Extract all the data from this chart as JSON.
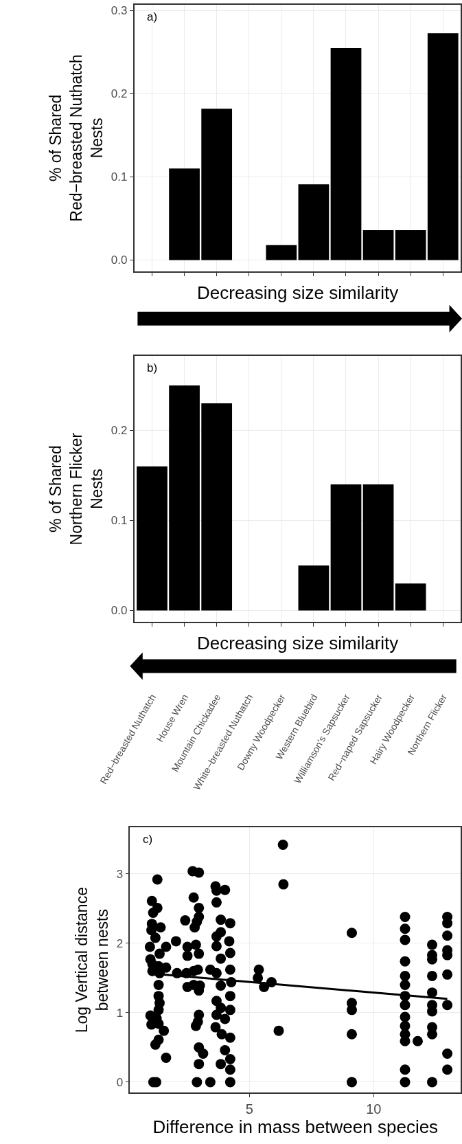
{
  "chart_data": [
    {
      "type": "bar",
      "categories": [
        null,
        null,
        null,
        null,
        null,
        null,
        null,
        null,
        null,
        null
      ],
      "values": [
        0,
        0.11,
        0.182,
        0,
        0.018,
        0.091,
        0.255,
        0.036,
        0.036,
        0.273
      ],
      "color": "#000000",
      "ylim": [
        -0.0135,
        0.307
      ],
      "yticks": [
        {
          "value": 0,
          "label": "0.0"
        },
        0.1,
        0.2,
        0.3
      ],
      "grid": true,
      "tick_labels": "y",
      "xlabel": "Decreasing size similarity",
      "ylabel": "% of Shared\nRed−breasted Nuthatch\nNests",
      "annotations": [
        "a)"
      ]
    },
    {
      "type": "bar",
      "categories": [
        "Red−breasted Nuthatch",
        "House Wren",
        "Mountain Chickadee",
        "White−breasted Nuthatch",
        "Downy Woodpecker",
        "Western Bluebird",
        "Williamson's Sapsucker",
        "Red−naped Sapsucker",
        "Hairy Woodpecker",
        "Northern Flicker"
      ],
      "values": [
        0.16,
        0.25,
        0.23,
        0,
        0,
        0.05,
        0.14,
        0.14,
        0.03,
        0
      ],
      "color": "#000000",
      "ylim": [
        -0.013,
        0.283
      ],
      "yticks": [
        {
          "value": 0,
          "label": "0.0"
        },
        {
          "value": 0.1,
          "label": "0.1"
        },
        {
          "value": 0.2,
          "label": "0.2"
        }
      ],
      "grid": true,
      "xlabel": "Decreasing size similarity",
      "ylabel": "% of Shared\nNorthern Flicker\nNests",
      "annotations": [
        "b)"
      ]
    },
    {
      "type": "scatter",
      "grid": true,
      "xlim": [
        0.2,
        13.5
      ],
      "xticks": [
        5,
        10
      ],
      "ylim": [
        -0.15,
        3.67
      ],
      "yticks": [
        0,
        1,
        2,
        3
      ],
      "xlabel": "Difference in mass between species",
      "ylabel": "Log Vertical distance\nbetween nests",
      "annotations": [
        "c)"
      ],
      "series": [
        {
          "type": "scatter",
          "color": "#000000",
          "marker": "circle",
          "x": [
            1.3,
            1.08,
            1.3,
            1.13,
            1.08,
            1.43,
            1.06,
            1.22,
            1.0,
            1.65,
            1.39,
            1.02,
            1.1,
            1.35,
            1.65,
            1.1,
            1.39,
            1.35,
            1.35,
            1.39,
            1.35,
            1.02,
            1.27,
            1.06,
            1.35,
            1.56,
            1.35,
            1.22,
            1.65,
            1.14,
            1.25,
            2.05,
            2.09,
            2.42,
            2.47,
            2.72,
            2.97,
            2.76,
            2.97,
            2.97,
            2.89,
            2.8,
            2.51,
            2.85,
            2.51,
            2.97,
            2.76,
            2.93,
            2.51,
            2.76,
            3.01,
            2.97,
            2.97,
            2.93,
            2.85,
            2.97,
            3.14,
            2.97,
            2.89,
            3.43,
            3.64,
            4.02,
            3.68,
            3.68,
            3.85,
            4.23,
            3.85,
            3.68,
            4.19,
            3.68,
            4.23,
            3.85,
            3.43,
            3.68,
            4.23,
            4.27,
            3.85,
            4.23,
            3.68,
            4.23,
            3.85,
            4.02,
            3.68,
            3.64,
            3.89,
            4.23,
            4.02,
            4.23,
            3.85,
            4.23,
            4.23,
            5.38,
            5.34,
            5.59,
            5.89,
            6.35,
            6.37,
            6.18,
            9.12,
            9.12,
            9.12,
            9.12,
            9.12,
            11.26,
            11.26,
            11.26,
            11.26,
            11.26,
            11.26,
            11.26,
            11.26,
            11.26,
            11.26,
            11.26,
            11.26,
            11.26,
            11.26,
            11.77,
            12.35,
            12.35,
            12.35,
            12.35,
            12.35,
            12.35,
            12.35,
            12.35,
            12.35,
            12.35,
            12.96,
            12.96,
            12.96,
            12.96,
            12.96,
            12.96,
            12.96,
            12.96,
            12.96
          ],
          "values": [
            2.92,
            2.61,
            2.51,
            2.44,
            2.28,
            2.23,
            2.19,
            2.08,
            1.95,
            1.95,
            1.85,
            1.77,
            1.7,
            1.67,
            1.65,
            1.6,
            1.57,
            1.4,
            1.24,
            1.14,
            1.04,
            0.96,
            0.92,
            0.83,
            0.84,
            0.74,
            0.61,
            0.54,
            0.35,
            0,
            0,
            2.03,
            1.57,
            2.33,
            1.57,
            3.04,
            3.02,
            2.66,
            2.51,
            2.38,
            2.31,
            2.23,
            1.95,
            1.98,
            1.82,
            1.85,
            1.6,
            1.62,
            1.37,
            1.4,
            1.39,
            1.32,
            0.97,
            0.87,
            0.81,
            0.5,
            0.41,
            0.26,
            0,
            0,
            2.82,
            2.77,
            2.76,
            2.59,
            2.34,
            2.29,
            2.16,
            2.1,
            2.03,
            1.96,
            1.86,
            1.78,
            1.62,
            1.57,
            1.62,
            1.44,
            1.39,
            1.24,
            1.17,
            1.04,
            1.07,
            0.91,
            0.97,
            0.79,
            0.69,
            0.64,
            0.46,
            0.33,
            0.26,
            0.18,
            0,
            1.62,
            1.5,
            1.37,
            1.44,
            3.42,
            2.85,
            0.74,
            2.15,
            1.14,
            1.04,
            0.69,
            0,
            2.38,
            2.21,
            2.05,
            1.74,
            1.53,
            1.4,
            1.24,
            1.11,
            0.94,
            0.81,
            0.69,
            0.59,
            0.18,
            0,
            0.59,
            1.98,
            1.83,
            1.77,
            1.53,
            1.29,
            1.11,
            1.02,
            0.79,
            0.69,
            0,
            2.38,
            2.29,
            2.11,
            1.9,
            1.83,
            1.55,
            1.11,
            0.41,
            0.18
          ]
        },
        {
          "type": "line",
          "color": "#000000",
          "x": [
            1.5,
            12.96
          ],
          "values": [
            1.55,
            1.2
          ]
        }
      ]
    }
  ]
}
